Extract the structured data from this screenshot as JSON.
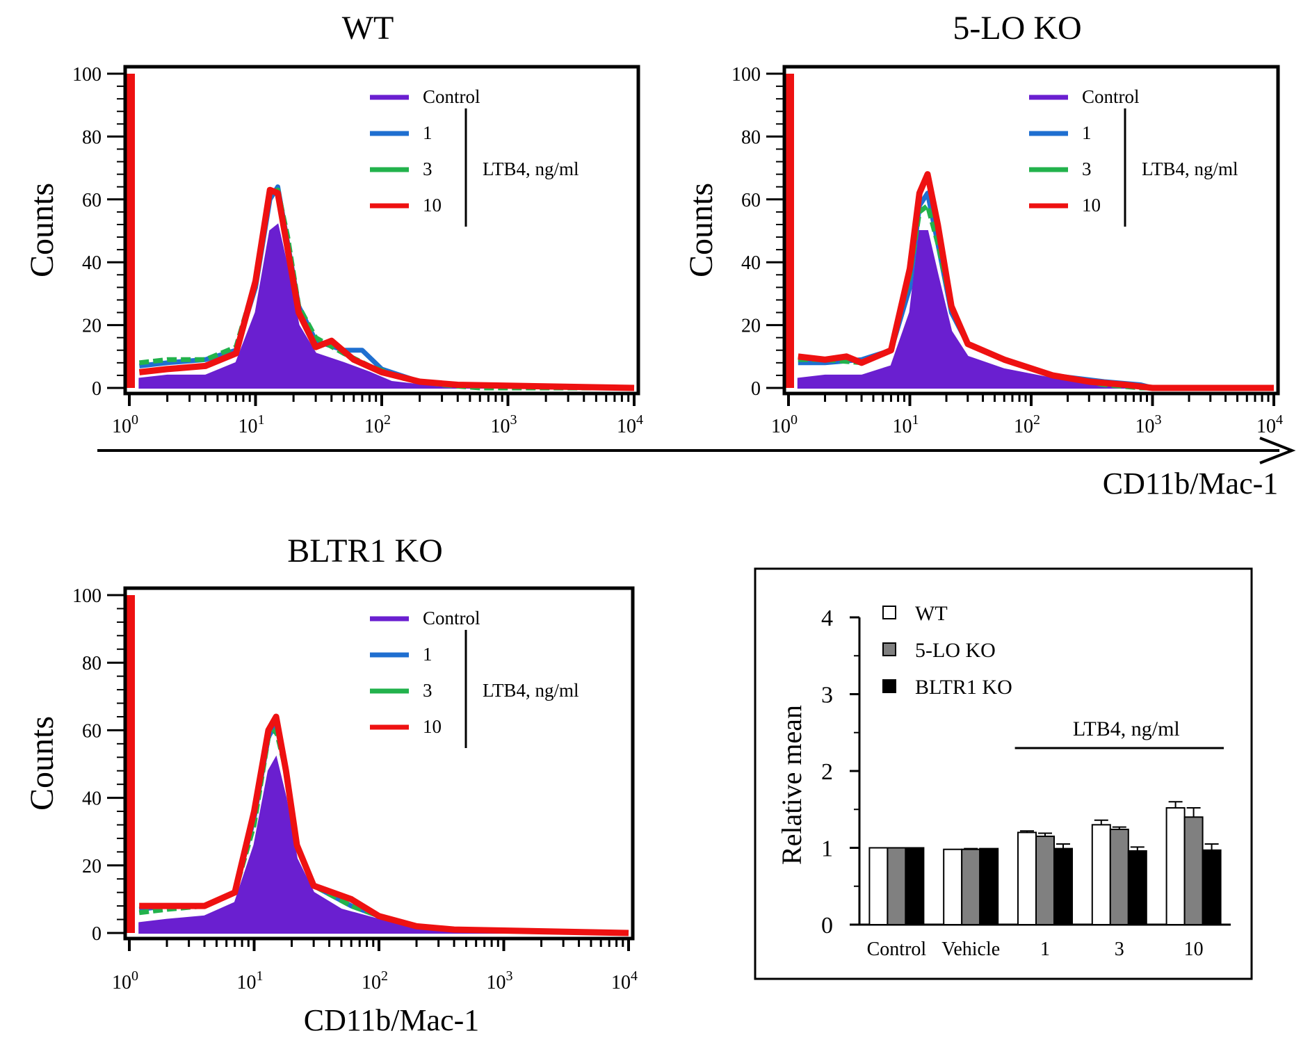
{
  "chart_data": [
    {
      "type": "area",
      "title": "WT",
      "ylabel": "Counts",
      "xlabel": "",
      "x_scale": "log",
      "xlim": [
        1,
        10000
      ],
      "ylim": [
        0,
        100
      ],
      "yticks": [
        "0",
        "20",
        "40",
        "60",
        "80",
        "100"
      ],
      "xticks": [
        {
          "base": "10",
          "exp": "0"
        },
        {
          "base": "10",
          "exp": "1"
        },
        {
          "base": "10",
          "exp": "2"
        },
        {
          "base": "10",
          "exp": "3"
        },
        {
          "base": "10",
          "exp": "4"
        }
      ],
      "legend": {
        "entries": [
          "Control",
          "1",
          "3",
          "10"
        ],
        "group_label": "LTB4, ng/ml"
      },
      "series": [
        {
          "name": "Control",
          "color": "#6a1fd0",
          "points": [
            [
              1.2,
              3
            ],
            [
              2,
              4
            ],
            [
              4,
              4
            ],
            [
              7,
              8
            ],
            [
              10,
              24
            ],
            [
              13,
              50
            ],
            [
              15,
              52
            ],
            [
              18,
              38
            ],
            [
              22,
              20
            ],
            [
              30,
              11
            ],
            [
              50,
              8
            ],
            [
              80,
              5
            ],
            [
              120,
              2
            ],
            [
              200,
              1
            ],
            [
              400,
              0
            ],
            [
              10000,
              0
            ]
          ]
        },
        {
          "name": "1",
          "color": "#1f6fd0",
          "points": [
            [
              1.2,
              7
            ],
            [
              2,
              8
            ],
            [
              4,
              9
            ],
            [
              7,
              12
            ],
            [
              10,
              32
            ],
            [
              13,
              60
            ],
            [
              15,
              64
            ],
            [
              18,
              46
            ],
            [
              22,
              26
            ],
            [
              30,
              15
            ],
            [
              50,
              12
            ],
            [
              70,
              12
            ],
            [
              100,
              6
            ],
            [
              200,
              2
            ],
            [
              400,
              1
            ],
            [
              10000,
              0
            ]
          ]
        },
        {
          "name": "3",
          "color": "#22b24c",
          "points": [
            [
              1.2,
              8
            ],
            [
              2,
              9
            ],
            [
              4,
              9
            ],
            [
              7,
              13
            ],
            [
              10,
              34
            ],
            [
              13,
              62
            ],
            [
              15,
              63
            ],
            [
              18,
              48
            ],
            [
              22,
              26
            ],
            [
              30,
              16
            ],
            [
              50,
              11
            ],
            [
              80,
              7
            ],
            [
              150,
              3
            ],
            [
              300,
              1
            ],
            [
              600,
              0
            ],
            [
              10000,
              0
            ]
          ]
        },
        {
          "name": "10",
          "color": "#ee1111",
          "points": [
            [
              1.2,
              5
            ],
            [
              2,
              6
            ],
            [
              4,
              7
            ],
            [
              7,
              11
            ],
            [
              10,
              34
            ],
            [
              13,
              63
            ],
            [
              15,
              62
            ],
            [
              18,
              44
            ],
            [
              22,
              24
            ],
            [
              30,
              13
            ],
            [
              40,
              15
            ],
            [
              60,
              9
            ],
            [
              100,
              5
            ],
            [
              200,
              2
            ],
            [
              400,
              1
            ],
            [
              10000,
              0
            ]
          ]
        }
      ]
    },
    {
      "type": "area",
      "title": "5-LO KO",
      "ylabel": "Counts",
      "xlabel": "CD11b/Mac-1",
      "x_scale": "log",
      "xlim": [
        1,
        10000
      ],
      "ylim": [
        0,
        100
      ],
      "yticks": [
        "0",
        "20",
        "40",
        "60",
        "80",
        "100"
      ],
      "xticks": [
        {
          "base": "10",
          "exp": "0"
        },
        {
          "base": "10",
          "exp": "1"
        },
        {
          "base": "10",
          "exp": "2"
        },
        {
          "base": "10",
          "exp": "3"
        },
        {
          "base": "10",
          "exp": "4"
        }
      ],
      "legend": {
        "entries": [
          "Control",
          "1",
          "3",
          "10"
        ],
        "group_label": "LTB4, ng/ml"
      },
      "series": [
        {
          "name": "Control",
          "color": "#6a1fd0",
          "points": [
            [
              1.2,
              3
            ],
            [
              2,
              4
            ],
            [
              4,
              4
            ],
            [
              7,
              7
            ],
            [
              10,
              24
            ],
            [
              12,
              50
            ],
            [
              14,
              50
            ],
            [
              17,
              36
            ],
            [
              22,
              18
            ],
            [
              30,
              10
            ],
            [
              60,
              6
            ],
            [
              150,
              3
            ],
            [
              400,
              1
            ],
            [
              800,
              0
            ],
            [
              10000,
              0
            ]
          ]
        },
        {
          "name": "1",
          "color": "#1f6fd0",
          "points": [
            [
              1.2,
              8
            ],
            [
              2,
              8
            ],
            [
              4,
              9
            ],
            [
              7,
              12
            ],
            [
              10,
              32
            ],
            [
              12,
              58
            ],
            [
              14,
              62
            ],
            [
              17,
              46
            ],
            [
              22,
              24
            ],
            [
              30,
              14
            ],
            [
              60,
              9
            ],
            [
              150,
              4
            ],
            [
              400,
              2
            ],
            [
              800,
              1
            ],
            [
              1000,
              0
            ],
            [
              10000,
              0
            ]
          ]
        },
        {
          "name": "3",
          "color": "#22b24c",
          "points": [
            [
              1.2,
              9
            ],
            [
              2,
              9
            ],
            [
              4,
              8
            ],
            [
              7,
              12
            ],
            [
              10,
              36
            ],
            [
              12,
              56
            ],
            [
              14,
              58
            ],
            [
              17,
              46
            ],
            [
              22,
              26
            ],
            [
              30,
              14
            ],
            [
              60,
              9
            ],
            [
              150,
              4
            ],
            [
              400,
              1
            ],
            [
              800,
              0
            ],
            [
              10000,
              0
            ]
          ]
        },
        {
          "name": "10",
          "color": "#ee1111",
          "points": [
            [
              1.2,
              10
            ],
            [
              2,
              9
            ],
            [
              3,
              10
            ],
            [
              4,
              8
            ],
            [
              7,
              12
            ],
            [
              10,
              38
            ],
            [
              12,
              62
            ],
            [
              14,
              68
            ],
            [
              17,
              52
            ],
            [
              22,
              26
            ],
            [
              30,
              14
            ],
            [
              60,
              9
            ],
            [
              150,
              4
            ],
            [
              300,
              2
            ],
            [
              600,
              1
            ],
            [
              1000,
              0
            ],
            [
              10000,
              0
            ]
          ]
        }
      ]
    },
    {
      "type": "area",
      "title": "BLTR1 KO",
      "ylabel": "Counts",
      "xlabel": "CD11b/Mac-1",
      "x_scale": "log",
      "xlim": [
        1,
        10000
      ],
      "ylim": [
        0,
        100
      ],
      "yticks": [
        "0",
        "20",
        "40",
        "60",
        "80",
        "100"
      ],
      "xticks": [
        {
          "base": "10",
          "exp": "0"
        },
        {
          "base": "10",
          "exp": "1"
        },
        {
          "base": "10",
          "exp": "2"
        },
        {
          "base": "10",
          "exp": "3"
        },
        {
          "base": "10",
          "exp": "4"
        }
      ],
      "legend": {
        "entries": [
          "Control",
          "1",
          "3",
          "10"
        ],
        "group_label": "LTB4, ng/ml"
      },
      "series": [
        {
          "name": "Control",
          "color": "#6a1fd0",
          "points": [
            [
              1.2,
              3
            ],
            [
              2,
              4
            ],
            [
              4,
              5
            ],
            [
              7,
              9
            ],
            [
              10,
              26
            ],
            [
              13,
              48
            ],
            [
              15,
              52
            ],
            [
              18,
              40
            ],
            [
              22,
              22
            ],
            [
              30,
              12
            ],
            [
              50,
              7
            ],
            [
              100,
              4
            ],
            [
              200,
              2
            ],
            [
              400,
              0
            ],
            [
              10000,
              0
            ]
          ]
        },
        {
          "name": "1",
          "color": "#1f6fd0",
          "points": [
            [
              1.2,
              7
            ],
            [
              2,
              8
            ],
            [
              4,
              8
            ],
            [
              7,
              12
            ],
            [
              10,
              34
            ],
            [
              13,
              58
            ],
            [
              15,
              62
            ],
            [
              18,
              48
            ],
            [
              22,
              26
            ],
            [
              30,
              14
            ],
            [
              60,
              8
            ],
            [
              100,
              5
            ],
            [
              200,
              2
            ],
            [
              400,
              1
            ],
            [
              10000,
              0
            ]
          ]
        },
        {
          "name": "3",
          "color": "#22b24c",
          "points": [
            [
              1.2,
              6
            ],
            [
              2,
              7
            ],
            [
              4,
              8
            ],
            [
              7,
              12
            ],
            [
              10,
              32
            ],
            [
              13,
              58
            ],
            [
              15,
              60
            ],
            [
              18,
              48
            ],
            [
              22,
              26
            ],
            [
              30,
              14
            ],
            [
              60,
              8
            ],
            [
              100,
              5
            ],
            [
              200,
              2
            ],
            [
              400,
              1
            ],
            [
              10000,
              0
            ]
          ]
        },
        {
          "name": "10",
          "color": "#ee1111",
          "points": [
            [
              1.2,
              8
            ],
            [
              2,
              8
            ],
            [
              4,
              8
            ],
            [
              7,
              12
            ],
            [
              10,
              36
            ],
            [
              13,
              60
            ],
            [
              15,
              64
            ],
            [
              18,
              48
            ],
            [
              22,
              26
            ],
            [
              30,
              14
            ],
            [
              60,
              10
            ],
            [
              100,
              5
            ],
            [
              200,
              2
            ],
            [
              400,
              1
            ],
            [
              10000,
              0
            ]
          ]
        }
      ]
    },
    {
      "type": "bar",
      "title": "",
      "ylabel": "Relative mean",
      "xlabel": "",
      "ylim": [
        0,
        4
      ],
      "yticks": [
        "0",
        "1",
        "2",
        "3",
        "4"
      ],
      "categories": [
        "Control",
        "Vehicle",
        "1",
        "3",
        "10"
      ],
      "group_label": "LTB4, ng/ml",
      "series": [
        {
          "name": "WT",
          "color": "#ffffff",
          "values": [
            1.0,
            0.98,
            1.2,
            1.3,
            1.52
          ],
          "errors": [
            0.0,
            0.0,
            0.02,
            0.06,
            0.08
          ]
        },
        {
          "name": "5-LO KO",
          "color": "#808080",
          "values": [
            1.0,
            0.98,
            1.15,
            1.24,
            1.4
          ],
          "errors": [
            0.0,
            0.01,
            0.04,
            0.03,
            0.12
          ]
        },
        {
          "name": "BLTR1 KO",
          "color": "#000000",
          "values": [
            1.0,
            0.99,
            0.99,
            0.96,
            0.97
          ],
          "errors": [
            0.0,
            0.0,
            0.06,
            0.05,
            0.08
          ]
        }
      ]
    }
  ],
  "shared_axis_label": "CD11b/Mac-1"
}
